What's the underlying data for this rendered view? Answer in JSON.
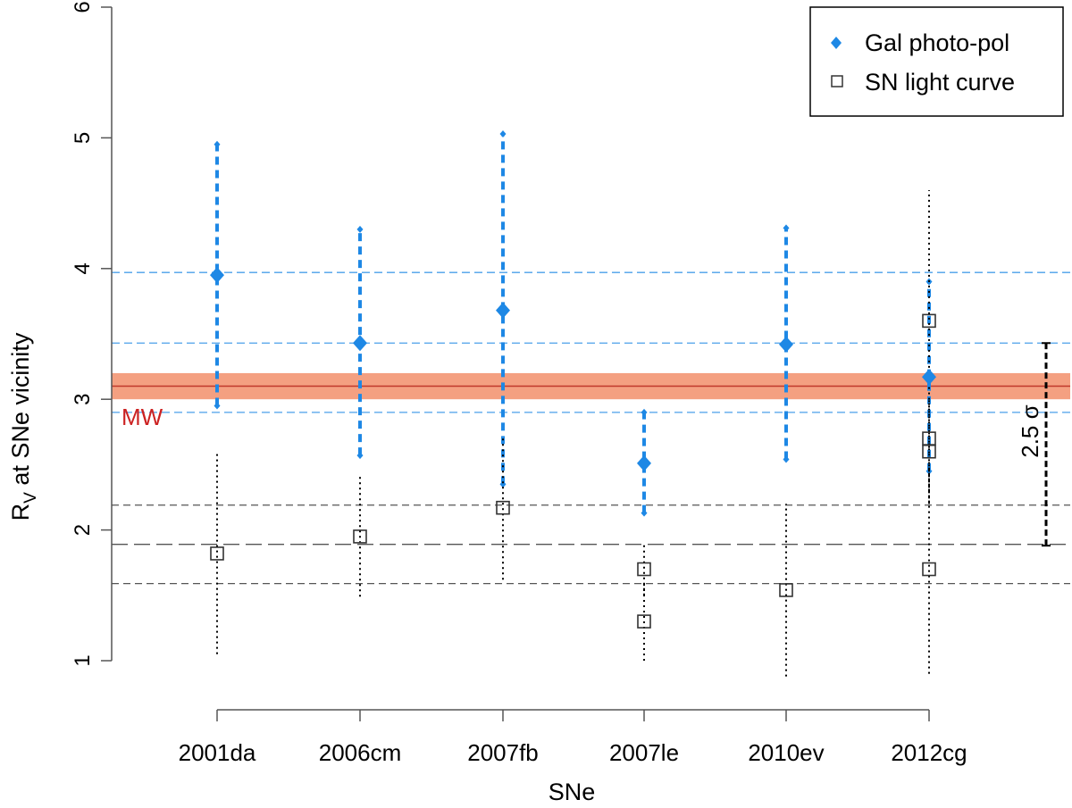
{
  "chart_data": {
    "type": "scatter",
    "title": "",
    "xlabel": "SNe",
    "ylabel_main": "R",
    "ylabel_sub": "V",
    "ylabel_rest": " at SNe vicinity",
    "ylim": [
      1,
      6
    ],
    "yticks": [
      "1",
      "2",
      "3",
      "4",
      "5",
      "6"
    ],
    "categories": [
      "2001da",
      "2006cm",
      "2007fb",
      "2007le",
      "2010ev",
      "2012cg"
    ],
    "colors": {
      "gal": "#1e88e5",
      "mw_band": "#f4a081",
      "mw_line": "#c0392b",
      "mw_label": "#cc2222",
      "dark": "#333333"
    },
    "mw": {
      "label": "MW",
      "value": 3.1,
      "band": [
        3.0,
        3.2
      ]
    },
    "gal_lines": [
      3.97,
      3.43,
      2.9
    ],
    "sn_lines": [
      2.19,
      1.89,
      1.59
    ],
    "sigma": {
      "label": "2.5 σ",
      "from": 1.88,
      "to": 3.43
    },
    "series": [
      {
        "name": "Gal photo-pol",
        "marker": "filled-diamond",
        "points": [
          {
            "cat": "2001da",
            "y": 3.95,
            "lo": 2.95,
            "hi": 4.95
          },
          {
            "cat": "2006cm",
            "y": 3.43,
            "lo": 2.57,
            "hi": 4.3
          },
          {
            "cat": "2007fb",
            "y": 3.68,
            "lo": 2.35,
            "hi": 5.03
          },
          {
            "cat": "2007le",
            "y": 2.51,
            "lo": 2.13,
            "hi": 2.9
          },
          {
            "cat": "2010ev",
            "y": 3.42,
            "lo": 2.54,
            "hi": 4.31
          },
          {
            "cat": "2012cg",
            "y": 3.17,
            "lo": 2.45,
            "hi": 3.9
          }
        ]
      },
      {
        "name": "SN light curve",
        "marker": "open-square",
        "points": [
          {
            "cat": "2001da",
            "y": 1.82,
            "lo": 1.05,
            "hi": 2.59
          },
          {
            "cat": "2006cm",
            "y": 1.95,
            "lo": 1.49,
            "hi": 2.41
          },
          {
            "cat": "2007fb",
            "y": 2.17,
            "lo": 1.62,
            "hi": 2.7
          },
          {
            "cat": "2007le",
            "y": 1.7,
            "lo": 1.5,
            "hi": 1.9
          },
          {
            "cat": "2007le",
            "y": 1.3,
            "lo": 1.0,
            "hi": 1.6
          },
          {
            "cat": "2010ev",
            "y": 1.54,
            "lo": 0.88,
            "hi": 2.2
          },
          {
            "cat": "2012cg",
            "y": 3.6,
            "lo": 3.2,
            "hi": 4.6
          },
          {
            "cat": "2012cg",
            "y": 2.7,
            "lo": 2.3,
            "hi": 3.1
          },
          {
            "cat": "2012cg",
            "y": 2.6,
            "lo": 2.2,
            "hi": 3.0
          },
          {
            "cat": "2012cg",
            "y": 1.7,
            "lo": 0.9,
            "hi": 2.5
          }
        ]
      }
    ],
    "legend": {
      "position": "top-right",
      "items": [
        "Gal photo-pol",
        "SN light curve"
      ]
    }
  }
}
